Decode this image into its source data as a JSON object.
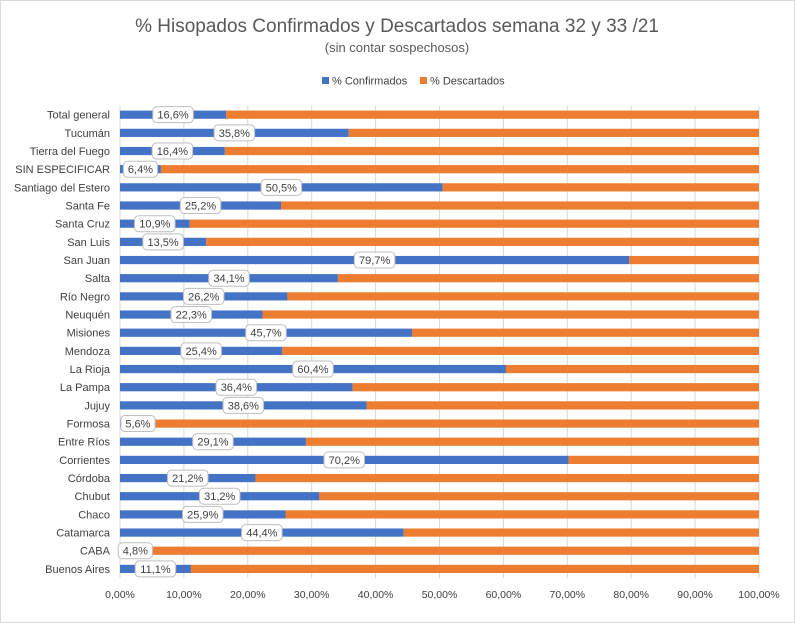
{
  "chart_data": {
    "type": "bar",
    "orientation": "horizontal",
    "stacked": "percent",
    "title": "% Hisopados Confirmados y Descartados semana 32 y 33 /21",
    "subtitle": "(sin contar sospechosos)",
    "legend_position": "top",
    "grid": true,
    "xlim": [
      0,
      100
    ],
    "x_ticks": [
      "0,00%",
      "10,00%",
      "20,00%",
      "30,00%",
      "40,00%",
      "50,00%",
      "60,00%",
      "70,00%",
      "80,00%",
      "90,00%",
      "100,00%"
    ],
    "colors": {
      "confirmados": "#4472c4",
      "descartados": "#ed7d31"
    },
    "categories": [
      "Total general",
      "Tucumán",
      "Tierra del Fuego",
      "SIN ESPECIFICAR",
      "Santiago del Estero",
      "Santa Fe",
      "Santa Cruz",
      "San Luis",
      "San Juan",
      "Salta",
      "Río Negro",
      "Neuquén",
      "Misiones",
      "Mendoza",
      "La Rioja",
      "La Pampa",
      "Jujuy",
      "Formosa",
      "Entre Ríos",
      "Corrientes",
      "Córdoba",
      "Chubut",
      "Chaco",
      "Catamarca",
      "CABA",
      "Buenos Aires"
    ],
    "series": [
      {
        "name": "% Confirmados",
        "values": [
          16.6,
          35.8,
          16.4,
          6.4,
          50.5,
          25.2,
          10.9,
          13.5,
          79.7,
          34.1,
          26.2,
          22.3,
          45.7,
          25.4,
          60.4,
          36.4,
          38.6,
          5.6,
          29.1,
          70.2,
          21.2,
          31.2,
          25.9,
          44.4,
          4.8,
          11.1
        ]
      },
      {
        "name": "% Descartados",
        "values": [
          83.4,
          64.2,
          83.6,
          93.6,
          49.5,
          74.8,
          89.1,
          86.5,
          20.3,
          65.9,
          73.8,
          77.7,
          54.3,
          74.6,
          39.6,
          63.6,
          61.4,
          94.4,
          70.9,
          29.8,
          78.8,
          68.8,
          74.1,
          55.6,
          95.2,
          88.9
        ]
      }
    ],
    "data_labels": [
      "16,6%",
      "35,8%",
      "16,4%",
      "6,4%",
      "50,5%",
      "25,2%",
      "10,9%",
      "13,5%",
      "79,7%",
      "34,1%",
      "26,2%",
      "22,3%",
      "45,7%",
      "25,4%",
      "60,4%",
      "36,4%",
      "38,6%",
      "5,6%",
      "29,1%",
      "70,2%",
      "21,2%",
      "31,2%",
      "25,9%",
      "44,4%",
      "4,8%",
      "11,1%"
    ]
  }
}
